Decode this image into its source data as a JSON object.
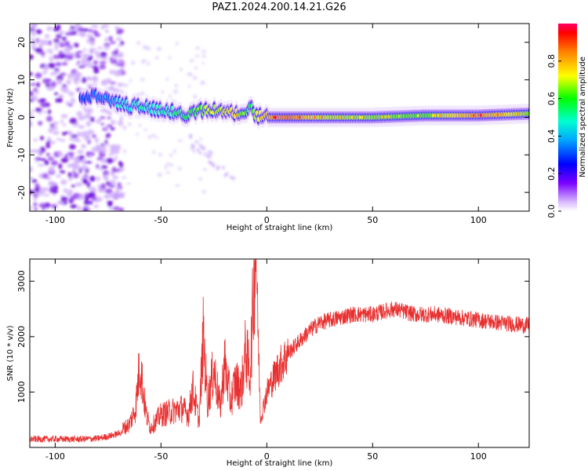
{
  "title": "PAZ1.2024.200.14.21.G26",
  "colors": {
    "snr_line": "#e83030",
    "ridge_low": "#1a12ff",
    "ridge_high": "#ff2a2a",
    "scatter": "#6a00d8"
  },
  "chart_data": [
    {
      "type": "heatmap",
      "xlabel": "Height of straight line (km)",
      "ylabel": "Frequency (Hz)",
      "xlim": [
        -112,
        124
      ],
      "ylim": [
        -25,
        25
      ],
      "xticks": [
        -100,
        -50,
        0,
        50,
        100
      ],
      "xtick_labels": [
        "-100",
        "-50",
        "0",
        "50",
        "100"
      ],
      "yticks": [
        -20,
        -10,
        0,
        10,
        20
      ],
      "ytick_labels": [
        "-20",
        "-10",
        "0",
        "10",
        "20"
      ],
      "grid": false,
      "ridge": {
        "x": [
          -85,
          -80,
          -75,
          -70,
          -65,
          -60,
          -55,
          -50,
          -45,
          -40,
          -35,
          -30,
          -25,
          -20,
          -15,
          -10,
          -8,
          -5,
          0,
          10,
          25,
          50,
          75,
          100,
          124
        ],
        "frequency": [
          5,
          6,
          5,
          4,
          3,
          3,
          2.5,
          2,
          1.5,
          0.5,
          1,
          2,
          2,
          1.5,
          1,
          2,
          3,
          0.5,
          0,
          0,
          0,
          0,
          0.5,
          0.5,
          1
        ],
        "amplitude": [
          0.25,
          0.3,
          0.3,
          0.4,
          0.45,
          0.5,
          0.45,
          0.5,
          0.5,
          0.55,
          0.6,
          0.65,
          0.7,
          0.75,
          0.8,
          0.6,
          0.55,
          0.75,
          0.85,
          0.95,
          0.75,
          0.7,
          0.65,
          0.9,
          0.7
        ]
      },
      "noisy_region_x": [
        -112,
        -68
      ],
      "colorbar": {
        "label": "Normalized spectral amplitude",
        "range": [
          0,
          1
        ],
        "ticks": [
          0,
          0.2,
          0.4,
          0.6,
          0.8
        ],
        "tick_labels": [
          "0.0",
          "0.2",
          "0.4",
          "0.6",
          "0.8"
        ]
      }
    },
    {
      "type": "line",
      "xlabel": "Height of straight line (km)",
      "ylabel": "SNR (10 * v/v)",
      "xlim": [
        -112,
        124
      ],
      "ylim": [
        0,
        3400
      ],
      "xticks": [
        -100,
        -50,
        0,
        50,
        100
      ],
      "xtick_labels": [
        "-100",
        "-50",
        "0",
        "50",
        "100"
      ],
      "yticks": [
        1000,
        2000,
        3000
      ],
      "ytick_labels": [
        "1000",
        "2000",
        "3000"
      ],
      "grid": false,
      "series": [
        {
          "x": [
            -112,
            -100,
            -90,
            -80,
            -75,
            -70,
            -65,
            -62,
            -60,
            -57,
            -55,
            -50,
            -45,
            -40,
            -37,
            -35,
            -32,
            -30,
            -28,
            -25,
            -22,
            -20,
            -17,
            -15,
            -12,
            -10,
            -8,
            -7,
            -6,
            -5,
            -3,
            0,
            5,
            10,
            15,
            20,
            25,
            30,
            35,
            40,
            50,
            55,
            60,
            65,
            70,
            80,
            90,
            100,
            110,
            124
          ],
          "y": [
            150,
            150,
            150,
            160,
            200,
            250,
            350,
            600,
            1300,
            500,
            300,
            500,
            550,
            600,
            500,
            900,
            400,
            1700,
            700,
            1200,
            600,
            1300,
            700,
            1000,
            900,
            1500,
            1100,
            1800,
            2600,
            3350,
            500,
            1000,
            1400,
            1700,
            1900,
            2100,
            2250,
            2300,
            2350,
            2400,
            2400,
            2450,
            2500,
            2450,
            2400,
            2400,
            2350,
            2300,
            2250,
            2200
          ]
        }
      ]
    }
  ]
}
